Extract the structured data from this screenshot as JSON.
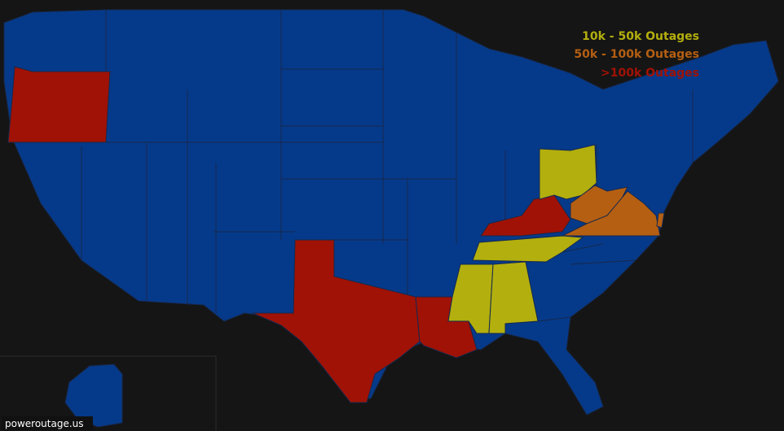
{
  "legend": [
    {
      "label": "10k - 50k Outages",
      "color": "#b3af0e"
    },
    {
      "label": "50k - 100k Outages",
      "color": "#b55f12"
    },
    {
      "label": ">100k Outages",
      "color": "#a01205"
    }
  ],
  "watermark": "poweroutage.us"
}
